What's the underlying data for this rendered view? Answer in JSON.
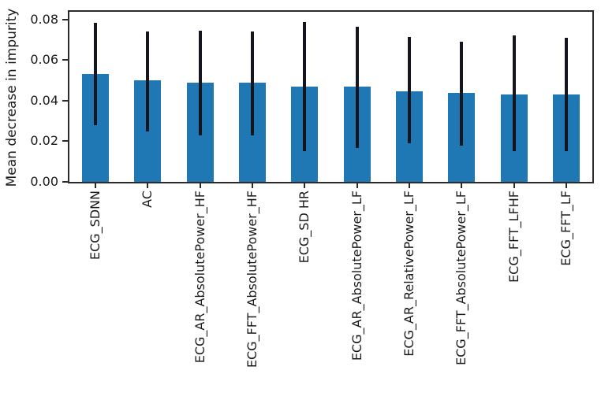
{
  "figure": {
    "kind": "matplotlib-style bar chart with error bars",
    "background": "#ffffff"
  },
  "chart_data": {
    "type": "bar",
    "title": "",
    "xlabel": "",
    "ylabel": "Mean decrease in impurity",
    "categories": [
      "ECG_SDNN",
      "AC",
      "ECG_AR_AbsolutePower_HF",
      "ECG_FFT_AbsolutePower_HF",
      "ECG_SD HR",
      "ECG_AR_AbsolutePower_LF",
      "ECG_AR_RelativePower_LF",
      "ECG_FFT_AbsolutePower_LF",
      "ECG_FFT_LFHF",
      "ECG_FFT_LF"
    ],
    "values": [
      0.053,
      0.05,
      0.049,
      0.049,
      0.047,
      0.047,
      0.0445,
      0.044,
      0.043,
      0.043
    ],
    "error_min": [
      0.028,
      0.025,
      0.023,
      0.023,
      0.015,
      0.0165,
      0.019,
      0.018,
      0.015,
      0.015
    ],
    "error_max": [
      0.0785,
      0.074,
      0.0745,
      0.074,
      0.0787,
      0.0765,
      0.0715,
      0.069,
      0.072,
      0.071
    ],
    "ytick_labels": [
      "0.00",
      "0.02",
      "0.04",
      "0.06",
      "0.08"
    ],
    "ytick_values": [
      0,
      0.02,
      0.04,
      0.06,
      0.08
    ],
    "ylim": [
      0,
      0.0838
    ],
    "grid": false,
    "legend": null,
    "bar_color": "#1f77b4",
    "error_color": "#15151f",
    "axis_color": "#2b2b2b",
    "text_color": "#1a1a1a"
  }
}
